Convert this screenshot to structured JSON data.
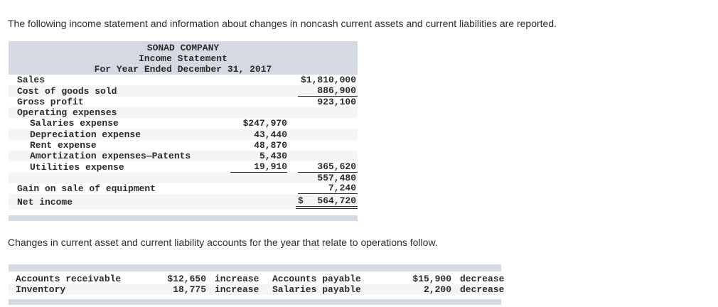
{
  "intro_text": "The following income statement and information about changes in noncash current assets and current liabilities are reported.",
  "income_statement": {
    "title_lines": [
      "SONAD COMPANY",
      "Income Statement",
      "For Year Ended December 31, 2017"
    ],
    "rows": [
      {
        "label": "Sales",
        "col1": "",
        "col2": "$1,810,000"
      },
      {
        "label": "Cost of goods sold",
        "col1": "",
        "col2": "886,900"
      },
      {
        "label": "Gross profit",
        "col1": "",
        "col2": "923,100"
      },
      {
        "label": "Operating expenses",
        "col1": "",
        "col2": ""
      },
      {
        "label": "Salaries expense",
        "col1": "$247,970",
        "col2": ""
      },
      {
        "label": "Depreciation expense",
        "col1": "43,440",
        "col2": ""
      },
      {
        "label": "Rent expense",
        "col1": "48,870",
        "col2": ""
      },
      {
        "label": "Amortization expenses—Patents",
        "col1": "5,430",
        "col2": ""
      },
      {
        "label": "Utilities expense",
        "col1": "19,910",
        "col2": "365,620"
      },
      {
        "label": "",
        "col1": "",
        "col2": "557,480"
      },
      {
        "label": "Gain on sale of equipment",
        "col1": "",
        "col2": "7,240"
      },
      {
        "label": "Net income",
        "col1": "",
        "currency": "$",
        "col2": "564,720"
      }
    ]
  },
  "changes_text": "Changes in current asset and current liability accounts for the year that relate to operations follow.",
  "changes_table": {
    "rows": [
      {
        "label1": "Accounts receivable",
        "amount1": "$12,650",
        "change1": "increase",
        "label2": "Accounts payable",
        "amount2": "$15,900",
        "change2": "decrease"
      },
      {
        "label1": "Inventory",
        "amount1": "18,775",
        "change1": "increase",
        "label2": "Salaries payable",
        "amount2": "2,200",
        "change2": "decrease"
      }
    ]
  },
  "colors": {
    "band": "#d5dae2",
    "stripe": "#f5f5f5"
  }
}
